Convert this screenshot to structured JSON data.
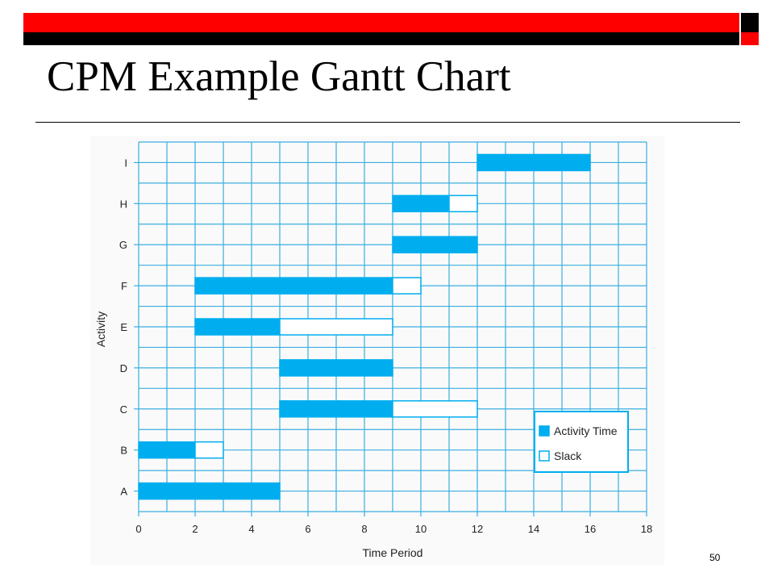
{
  "slide": {
    "title": "CPM Example Gantt Chart",
    "page_number": "50"
  },
  "colors": {
    "top_bar_red": "#ff0000",
    "top_bar_black": "#000000",
    "grid": "#3aaee0",
    "activity_fill": "#00aeef",
    "slack_fill": "#ffffff"
  },
  "chart_data": {
    "type": "gantt",
    "xlabel": "Time Period",
    "ylabel": "Activity",
    "xlim": [
      0,
      18
    ],
    "xticks": [
      "0",
      "2",
      "4",
      "6",
      "8",
      "10",
      "12",
      "14",
      "16",
      "18"
    ],
    "grid": true,
    "legend_position": "bottom-right",
    "legend": [
      {
        "label": "Activity Time",
        "style": "filled"
      },
      {
        "label": "Slack",
        "style": "outline"
      }
    ],
    "tasks": [
      {
        "name": "A",
        "start": 0,
        "duration": 5,
        "slack": 0
      },
      {
        "name": "B",
        "start": 0,
        "duration": 2,
        "slack": 1
      },
      {
        "name": "C",
        "start": 5,
        "duration": 4,
        "slack": 3
      },
      {
        "name": "D",
        "start": 5,
        "duration": 4,
        "slack": 0
      },
      {
        "name": "E",
        "start": 2,
        "duration": 3,
        "slack": 4
      },
      {
        "name": "F",
        "start": 2,
        "duration": 7,
        "slack": 1
      },
      {
        "name": "G",
        "start": 9,
        "duration": 3,
        "slack": 0
      },
      {
        "name": "H",
        "start": 9,
        "duration": 2,
        "slack": 1
      },
      {
        "name": "I",
        "start": 12,
        "duration": 4,
        "slack": 0
      }
    ]
  }
}
